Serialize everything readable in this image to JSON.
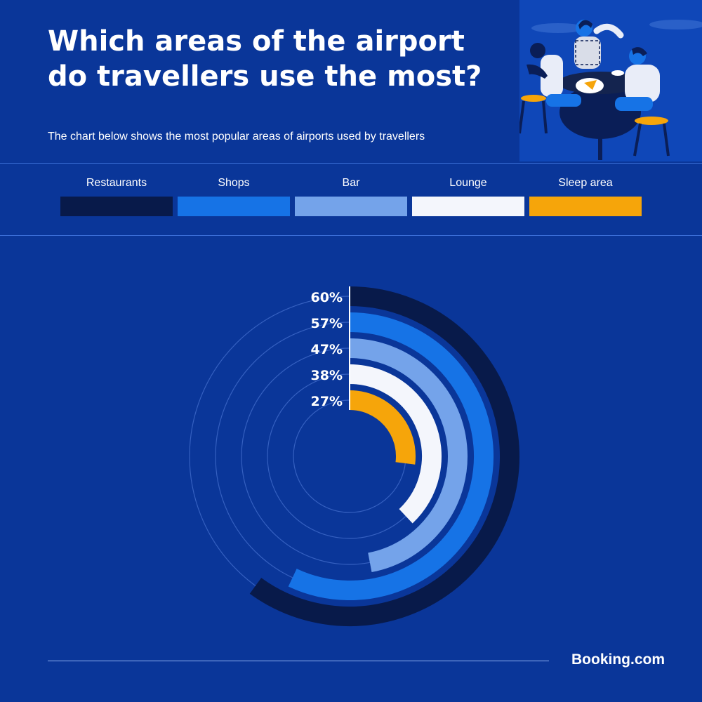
{
  "title": "Which areas of the airport do travellers use the most?",
  "subtitle": "The chart below shows the most popular areas of airports used by travellers",
  "brand": "Booking.com",
  "colors": {
    "background": "#0a3699",
    "guide": "#3560c0",
    "label": "#ffffff"
  },
  "legend": [
    {
      "label": "Restaurants",
      "color": "#081a4a"
    },
    {
      "label": "Shops",
      "color": "#1673e6"
    },
    {
      "label": "Bar",
      "color": "#74a3ea"
    },
    {
      "label": "Lounge",
      "color": "#f4f6fc"
    },
    {
      "label": "Sleep area",
      "color": "#f6a50a"
    }
  ],
  "chart_data": {
    "type": "radial-bar",
    "scale_max_percent": 100,
    "series": [
      {
        "name": "Restaurants",
        "value": 60,
        "label": "60%",
        "color": "#081a4a"
      },
      {
        "name": "Shops",
        "value": 57,
        "label": "57%",
        "color": "#1673e6"
      },
      {
        "name": "Bar",
        "value": 47,
        "label": "47%",
        "color": "#74a3ea"
      },
      {
        "name": "Lounge",
        "value": 38,
        "label": "38%",
        "color": "#f4f6fc"
      },
      {
        "name": "Sleep area",
        "value": 27,
        "label": "27%",
        "color": "#f6a50a"
      }
    ]
  },
  "illustration": {
    "icon": "travellers-eating-at-table-illustration"
  }
}
